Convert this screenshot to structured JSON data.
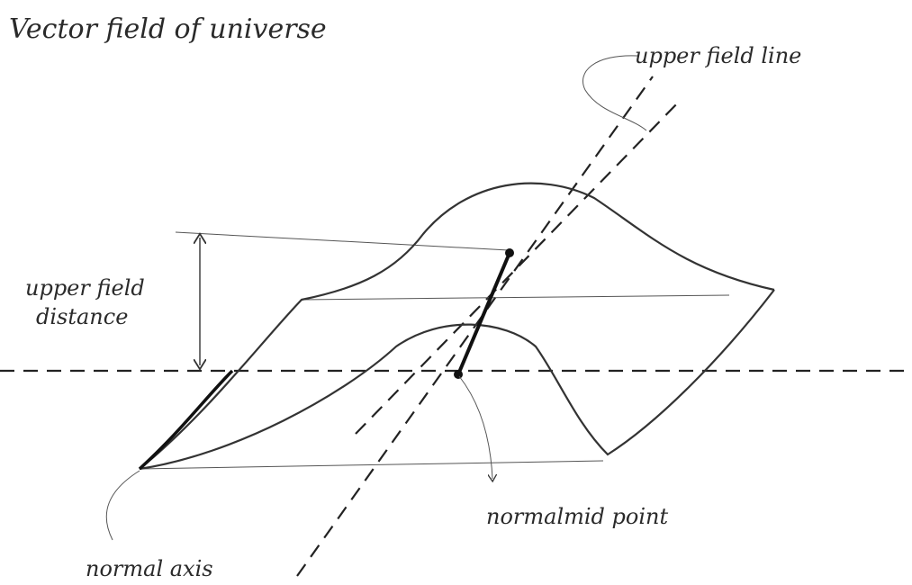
{
  "title": "Vector field of universe",
  "annotations": [
    {
      "lines": [
        "upper field line"
      ]
    },
    {
      "lines": [
        "upper field",
        "distance"
      ]
    },
    {
      "lines": [
        "normalmid point"
      ]
    },
    {
      "lines": [
        "normal axis"
      ]
    }
  ]
}
